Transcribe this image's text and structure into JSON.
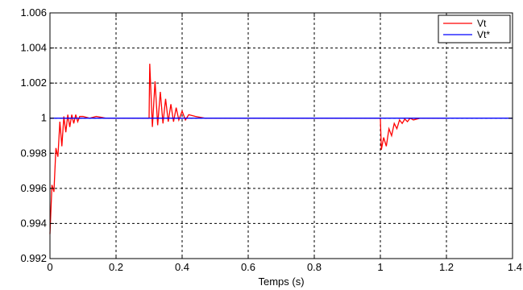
{
  "chart_data": {
    "type": "line",
    "title": "",
    "xlabel": "Temps (s)",
    "ylabel": "",
    "xlim": [
      0,
      1.4
    ],
    "ylim": [
      0.992,
      1.006
    ],
    "x_ticks": [
      0,
      0.2,
      0.4,
      0.6,
      0.8,
      1,
      1.2,
      1.4
    ],
    "x_tick_labels": [
      "0",
      "0.2",
      "0.4",
      "0.6",
      "0.8",
      "1",
      "1.2",
      "1.4"
    ],
    "y_ticks": [
      0.992,
      0.994,
      0.996,
      0.998,
      1,
      1.002,
      1.004,
      1.006
    ],
    "y_tick_labels": [
      "0.992",
      "0.994",
      "0.996",
      "0.998",
      "1",
      "1.002",
      "1.004",
      "1.006"
    ],
    "grid": true,
    "grid_style": "dashed",
    "legend_position": "top-right",
    "series": [
      {
        "name": "Vt",
        "color": "#ff0000",
        "segments": [
          {
            "x": [
              0.0,
              0.006,
              0.012,
              0.018,
              0.024,
              0.03,
              0.036,
              0.042,
              0.048,
              0.054,
              0.06,
              0.066,
              0.072,
              0.078,
              0.084,
              0.09,
              0.1,
              0.12,
              0.14,
              0.17,
              0.2,
              0.3
            ],
            "y": [
              0.9934,
              0.9962,
              0.9958,
              0.9983,
              0.9978,
              0.9998,
              0.9984,
              1.0001,
              0.9992,
              1.0002,
              0.9995,
              1.0002,
              0.9997,
              1.0002,
              0.9998,
              1.0001,
              1.0001,
              1.0,
              1.0001,
              1.0,
              1.0,
              1.0
            ]
          },
          {
            "x": [
              0.3,
              0.302,
              0.31,
              0.318,
              0.326,
              0.334,
              0.342,
              0.35,
              0.358,
              0.366,
              0.374,
              0.382,
              0.39,
              0.4,
              0.41,
              0.42,
              0.44,
              0.47,
              0.5,
              0.55,
              0.6,
              1.0
            ],
            "y": [
              1.0,
              1.0031,
              0.9995,
              1.0021,
              0.9996,
              1.0015,
              0.9997,
              1.0011,
              0.9998,
              1.0008,
              0.9998,
              1.0006,
              0.9999,
              1.0004,
              0.9999,
              1.0002,
              1.0001,
              1.0,
              1.0,
              1.0,
              1.0,
              1.0
            ]
          },
          {
            "x": [
              1.0,
              1.003,
              1.01,
              1.018,
              1.026,
              1.034,
              1.042,
              1.05,
              1.058,
              1.066,
              1.074,
              1.082,
              1.09,
              1.1,
              1.12,
              1.15,
              1.2
            ],
            "y": [
              1.0,
              0.9982,
              0.9989,
              0.9984,
              0.9994,
              0.999,
              0.9997,
              0.9994,
              0.9999,
              0.9997,
              0.99995,
              0.9998,
              1.0,
              0.9999,
              1.0,
              1.0,
              1.0
            ]
          }
        ]
      },
      {
        "name": "Vt*",
        "color": "#0000ff",
        "segments": [
          {
            "x": [
              0,
              1.4
            ],
            "y": [
              1.0,
              1.0
            ]
          }
        ]
      }
    ]
  }
}
